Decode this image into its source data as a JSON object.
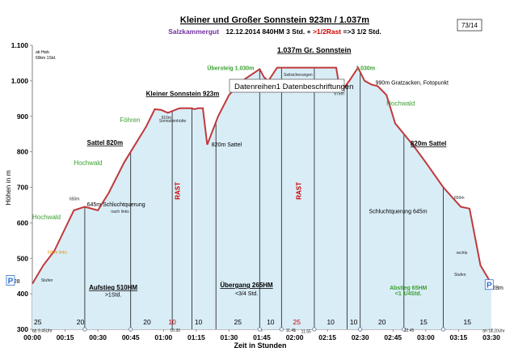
{
  "header": {
    "title": "Kleiner und Großer Sonnstein  923m / 1.037m",
    "sub_region": "Salzkammergut",
    "sub_main": "12.12.2014    840HM    3  Std. +",
    "sub_rest": " >1/2Rast",
    "sub_total": " =>3 1/2 Std.",
    "page_badge": "73/14",
    "tooltip": "Datenreihen1 Datenbeschriftungen",
    "corner_note_1": "ab Hwb",
    "corner_note_2": "69km 1Std."
  },
  "colors": {
    "line": "#c0393b",
    "fill": "#d9edf7",
    "title": "#000000",
    "subtitle_region": "#7030a0",
    "rest": "#cc0000",
    "green": "#3aa02f",
    "blue_marker": "#2f6fd0"
  },
  "chart_data": {
    "type": "area",
    "xlabel": "Zeit in Stunden",
    "ylabel": "Höhen in m",
    "xlim": [
      0,
      210
    ],
    "ylim": [
      300,
      1100
    ],
    "y_ticks": [
      300,
      400,
      500,
      600,
      700,
      800,
      900,
      1000,
      1100
    ],
    "y_tick_labels": [
      "300",
      "400",
      "500",
      "600",
      "700",
      "800",
      "900",
      "1.000",
      "1.100"
    ],
    "x_ticks": [
      0,
      15,
      30,
      45,
      60,
      75,
      90,
      105,
      120,
      135,
      150,
      165,
      180,
      195,
      210
    ],
    "x_tick_labels": [
      "00:00",
      "00:15",
      "00:30",
      "00:45",
      "01:00",
      "01:15",
      "01:30",
      "01:45",
      "02:00",
      "02:15",
      "02:30",
      "02:45",
      "03:00",
      "03:15",
      "03:30"
    ],
    "x": [
      0,
      5,
      10,
      19,
      24,
      30,
      35,
      42,
      47,
      52,
      56,
      59,
      62,
      67,
      68,
      70,
      73,
      74,
      76,
      78,
      80,
      85,
      90,
      96,
      104,
      106,
      108,
      112,
      116,
      122,
      132,
      139,
      140,
      142,
      145,
      149,
      152,
      155,
      158,
      162,
      166,
      174,
      180,
      188,
      196,
      200,
      205,
      210
    ],
    "y": [
      428,
      480,
      520,
      635,
      645,
      635,
      685,
      770,
      820,
      870,
      920,
      918,
      910,
      922,
      923,
      923,
      923,
      920,
      923,
      923,
      820,
      900,
      960,
      1000,
      1033,
      1010,
      1000,
      1037,
      1037,
      1037,
      1037,
      1037,
      1000,
      975,
      1000,
      1037,
      1000,
      990,
      985,
      960,
      880,
      820,
      770,
      700,
      645,
      640,
      480,
      428
    ],
    "series": [
      {
        "name": "Datenreihen1"
      }
    ],
    "segment_lines_x": [
      24,
      45,
      64,
      73,
      84,
      104,
      114,
      129,
      144,
      150,
      170,
      188
    ],
    "bottom_numbers": [
      {
        "x": 2.5,
        "label": "25",
        "rest": false
      },
      {
        "x": 22,
        "label": "20",
        "rest": false
      },
      {
        "x": 52.5,
        "label": "20",
        "rest": false
      },
      {
        "x": 64,
        "label": "10",
        "rest": true
      },
      {
        "x": 76,
        "label": "10",
        "rest": false
      },
      {
        "x": 94,
        "label": "25",
        "rest": false
      },
      {
        "x": 109,
        "label": "10",
        "rest": false
      },
      {
        "x": 121,
        "label": "25",
        "rest": true
      },
      {
        "x": 136.5,
        "label": "10",
        "rest": false
      },
      {
        "x": 147,
        "label": "10",
        "rest": false
      },
      {
        "x": 160,
        "label": "20",
        "rest": false
      },
      {
        "x": 179,
        "label": "15",
        "rest": false
      },
      {
        "x": 199,
        "label": "15",
        "rest": false
      }
    ],
    "annotations": [
      {
        "text": "1.037m Gr. Sonnstein",
        "x": 112,
        "y": 1080,
        "kind": "bold-underline"
      },
      {
        "text": "Kleiner Sonnstein 923m",
        "x": 52,
        "y": 958,
        "kind": "bold-underline"
      },
      {
        "text": "Föhren",
        "x": 40,
        "y": 883,
        "kind": "green"
      },
      {
        "text": "Sattel 820m",
        "x": 25,
        "y": 820,
        "kind": "bold-underline"
      },
      {
        "text": "Hochwald",
        "x": 19,
        "y": 763,
        "kind": "green"
      },
      {
        "text": "645m Schluchtquerung",
        "x": 25,
        "y": 646,
        "kind": "small"
      },
      {
        "text": "nach links",
        "x": 36,
        "y": 628,
        "kind": "tiny"
      },
      {
        "text": "Hochwald",
        "x": 0,
        "y": 610,
        "kind": "green"
      },
      {
        "text": "500m links",
        "x": 7,
        "y": 513,
        "kind": "orange"
      },
      {
        "text": "Stufen",
        "x": 4,
        "y": 434,
        "kind": "tiny"
      },
      {
        "text": "820m Sattel",
        "x": 82,
        "y": 815,
        "kind": "small"
      },
      {
        "text": "910m",
        "x": 59,
        "y": 893,
        "kind": "tiny"
      },
      {
        "text": "Sonnsteinhütte",
        "x": 58,
        "y": 883,
        "kind": "tiny"
      },
      {
        "text": "Übersteig 1.030m",
        "x": 80,
        "y": 1030,
        "kind": "green-small"
      },
      {
        "text": "Seilsicherungen",
        "x": 115,
        "y": 1013,
        "kind": "tiny"
      },
      {
        "text": "1.030m",
        "x": 148,
        "y": 1030,
        "kind": "green-small"
      },
      {
        "text": "975m",
        "x": 138,
        "y": 960,
        "kind": "tiny"
      },
      {
        "text": "990m Gratzacken, Fotopunkt",
        "x": 157,
        "y": 990,
        "kind": "small"
      },
      {
        "text": "Hochwald",
        "x": 162,
        "y": 930,
        "kind": "green"
      },
      {
        "text": "820m Sattel",
        "x": 173,
        "y": 817,
        "kind": "bold-underline"
      },
      {
        "text": "650m",
        "x": 193,
        "y": 667,
        "kind": "tiny"
      },
      {
        "text": "Schluchtquerung 645m",
        "x": 154,
        "y": 627,
        "kind": "small"
      },
      {
        "text": "rechts",
        "x": 194,
        "y": 512,
        "kind": "tiny"
      },
      {
        "text": "Stufen",
        "x": 193,
        "y": 450,
        "kind": "tiny"
      },
      {
        "text": "428m",
        "x": 209,
        "y": 412,
        "kind": "small"
      },
      {
        "text": "428",
        "x": -10,
        "y": 430,
        "kind": "small"
      },
      {
        "text": "Aufstieg 510HM",
        "x": 37,
        "y": 412,
        "kind": "bold-underline"
      },
      {
        "text": ">1Std.",
        "x": 37,
        "y": 392,
        "kind": "small"
      },
      {
        "text": "Übergang 265HM",
        "x": 98,
        "y": 418,
        "kind": "bold-underline"
      },
      {
        "text": "<3/4 Std.",
        "x": 98,
        "y": 396,
        "kind": "small"
      },
      {
        "text": "Abstieg 65HM",
        "x": 172,
        "y": 412,
        "kind": "green-small"
      },
      {
        "text": "<1 1/4Std.",
        "x": 172,
        "y": 396,
        "kind": "green-small"
      },
      {
        "text": "650m",
        "x": 17,
        "y": 663,
        "kind": "tiny"
      },
      {
        "text": "ab 9.45Uhr",
        "x": 0,
        "y": 292,
        "kind": "tiny"
      },
      {
        "text": "10.30",
        "x": 63,
        "y": 293,
        "kind": "tiny"
      },
      {
        "text": "11.45",
        "x": 116,
        "y": 293,
        "kind": "tiny"
      },
      {
        "text": "11.55",
        "x": 123,
        "y": 290,
        "kind": "tiny"
      },
      {
        "text": "12.45",
        "x": 170,
        "y": 293,
        "kind": "tiny"
      },
      {
        "text": "an 13.20Uhr",
        "x": 206,
        "y": 292,
        "kind": "tiny"
      }
    ],
    "rest_labels": [
      {
        "text": "RAST",
        "x": 67.5,
        "y": 690
      },
      {
        "text": "RAST",
        "x": 123,
        "y": 690
      }
    ],
    "p_markers": [
      {
        "text": "P",
        "x": -10,
        "y": 438
      },
      {
        "text": "P",
        "x": 209,
        "y": 426
      }
    ],
    "point_markers_x": [
      24,
      45,
      104,
      114,
      129,
      150,
      170,
      188
    ],
    "grid": false,
    "legend": "none"
  }
}
